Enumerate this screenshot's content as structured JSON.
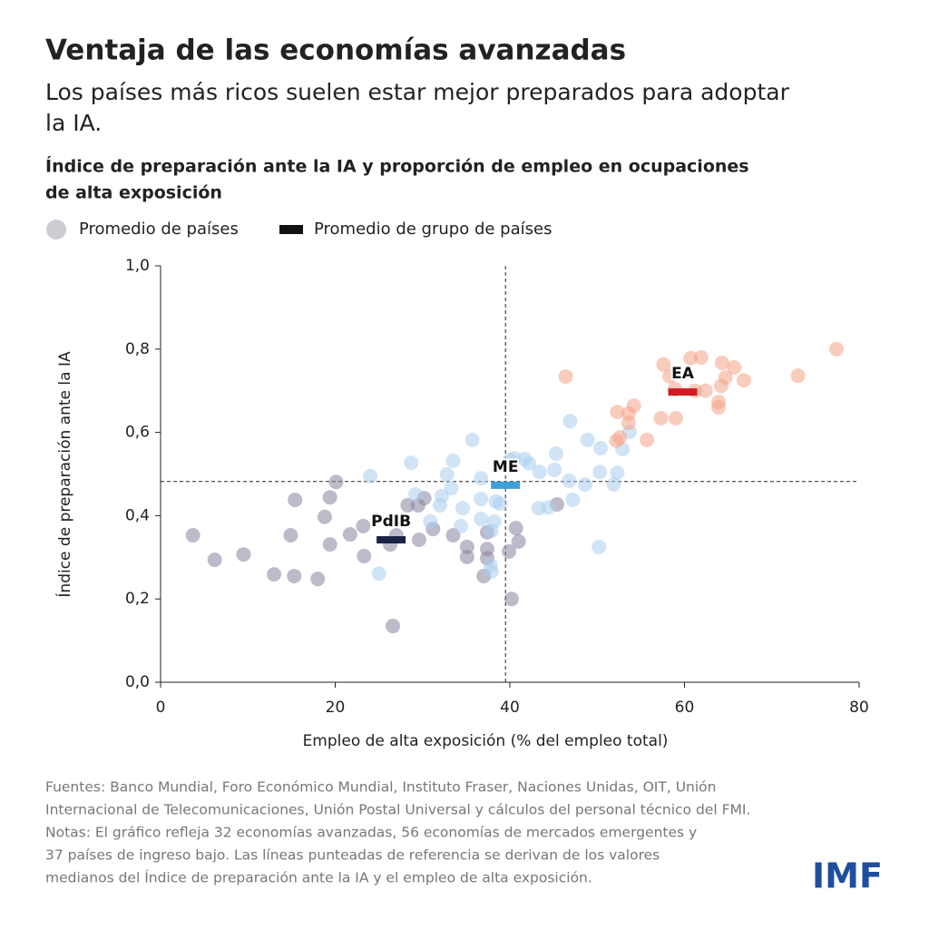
{
  "header": {
    "title": "Ventaja de las economías avanzadas",
    "subtitle": [
      "Los países más ricos suelen estar mejor preparados para adoptar",
      "la IA."
    ]
  },
  "chart_data": {
    "type": "scatter",
    "title": [
      "Índice de preparación ante la IA y proporción de empleo en ocupaciones",
      "de alta exposición"
    ],
    "legend": {
      "points": "Promedio de países",
      "means": "Promedio de grupo de países"
    },
    "xlabel": "Empleo de alta exposición (% del empleo total)",
    "ylabel": "Índice de preparación ante la IA",
    "xlim": [
      0,
      80
    ],
    "ylim": [
      0,
      1
    ],
    "xticks": [
      0,
      20,
      40,
      60,
      80
    ],
    "yticks": [
      {
        "value": 0,
        "label": "0,0"
      },
      {
        "value": 0.2,
        "label": "0,2"
      },
      {
        "value": 0.4,
        "label": "0,4"
      },
      {
        "value": 0.6,
        "label": "0,6"
      },
      {
        "value": 0.8,
        "label": "0,8"
      },
      {
        "value": 1,
        "label": "1,0"
      }
    ],
    "ref_x": 39.5,
    "ref_y": 0.482,
    "series": [
      {
        "label": "PdIB",
        "color": "#8a819f",
        "mean_color": "#1a2347",
        "mean": {
          "x": 26.4,
          "y": 0.342
        },
        "x": [
          3.7,
          6.2,
          9.5,
          13,
          15.3,
          18,
          14.9,
          15.4,
          18.8,
          19.4,
          20.1,
          19.4,
          21.7,
          23.3,
          23.2,
          26.3,
          26.6,
          27,
          28.3,
          29.5,
          30.2,
          29.6,
          31.2,
          33.5,
          35.1,
          35.1,
          37,
          37.4,
          37.4,
          37.4,
          40.2,
          39.9,
          41,
          40.7,
          45.4
        ],
        "y": [
          0.353,
          0.294,
          0.307,
          0.259,
          0.255,
          0.248,
          0.353,
          0.438,
          0.397,
          0.444,
          0.481,
          0.331,
          0.355,
          0.303,
          0.375,
          0.331,
          0.135,
          0.353,
          0.425,
          0.425,
          0.442,
          0.342,
          0.368,
          0.353,
          0.325,
          0.301,
          0.255,
          0.298,
          0.32,
          0.36,
          0.2,
          0.314,
          0.338,
          0.37,
          0.427
        ]
      },
      {
        "label": "ME",
        "color": "#a9cdef",
        "mean_color": "#3ea0d8",
        "mean": {
          "x": 39.5,
          "y": 0.473
        },
        "x": [
          24,
          28.7,
          33.5,
          33.3,
          32.8,
          32.2,
          32,
          30.9,
          35.7,
          36.7,
          36.7,
          34.6,
          34.4,
          36.7,
          38.2,
          37.9,
          38.4,
          38.9,
          37.8,
          37.9,
          25,
          40,
          40.5,
          41.7,
          42.2,
          43.4,
          45.1,
          45.3,
          46.9,
          46.8,
          47.2,
          43.3,
          44.4,
          48.9,
          48.6,
          50.3,
          50.4,
          52.3,
          51.9,
          52.9,
          53.7,
          50.2,
          29.2
        ],
        "y": [
          0.495,
          0.527,
          0.532,
          0.466,
          0.499,
          0.447,
          0.425,
          0.386,
          0.582,
          0.49,
          0.44,
          0.418,
          0.375,
          0.392,
          0.386,
          0.364,
          0.434,
          0.429,
          0.281,
          0.266,
          0.261,
          0.534,
          0.538,
          0.536,
          0.525,
          0.505,
          0.51,
          0.549,
          0.627,
          0.484,
          0.438,
          0.418,
          0.42,
          0.582,
          0.475,
          0.505,
          0.562,
          0.503,
          0.475,
          0.56,
          0.601,
          0.325,
          0.451
        ]
      },
      {
        "label": "EA",
        "color": "#f4a286",
        "mean_color": "#d01c22",
        "mean": {
          "x": 59.8,
          "y": 0.697
        },
        "x": [
          57.6,
          60.7,
          61.9,
          77.4,
          73,
          64.3,
          65.7,
          64.7,
          64.2,
          66.8,
          62.4,
          58.9,
          63.9,
          63.9,
          59,
          57.3,
          55.7,
          54.2,
          53.6,
          52.3,
          53.6,
          52.6,
          52.2,
          46.4,
          58.3,
          61.2
        ],
        "y": [
          0.763,
          0.778,
          0.78,
          0.8,
          0.736,
          0.767,
          0.756,
          0.732,
          0.712,
          0.725,
          0.7,
          0.704,
          0.673,
          0.66,
          0.634,
          0.634,
          0.582,
          0.664,
          0.645,
          0.649,
          0.623,
          0.588,
          0.58,
          0.734,
          0.735,
          0.7
        ]
      }
    ]
  },
  "footer": {
    "notes": [
      "Fuentes: Banco Mundial, Foro Económico Mundial, Instituto Fraser, Naciones Unidas, OIT, Unión",
      "Internacional de Telecomunicaciones, Unión Postal Universal y cálculos del personal técnico del FMI.",
      "Notas: El gráfico refleja 32 economías avanzadas, 56 economías de mercados emergentes y",
      "37 países de ingreso bajo. Las líneas punteadas de referencia se derivan de los valores",
      "medianos del Índice de preparación ante la IA y el empleo de alta exposición."
    ],
    "logo": "IMF"
  }
}
